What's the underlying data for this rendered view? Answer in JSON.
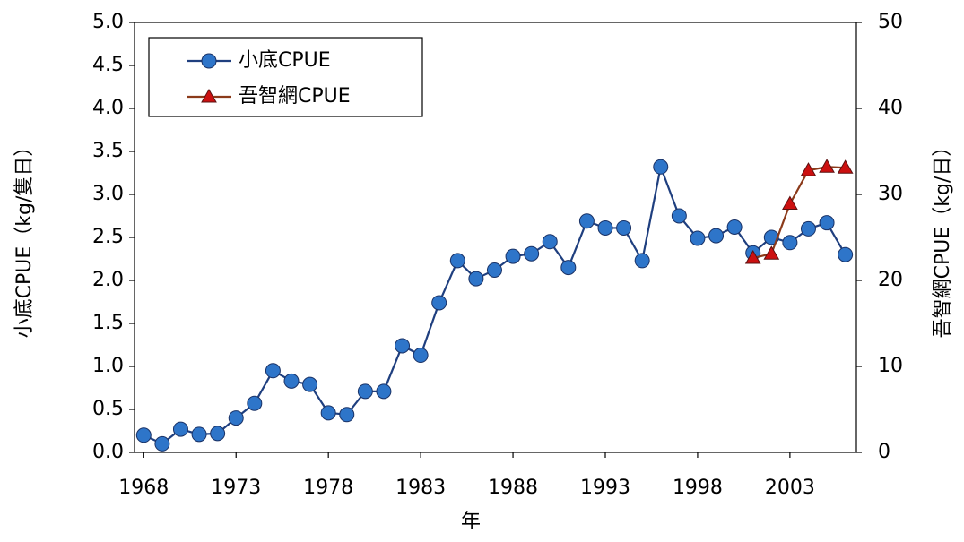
{
  "chart_data": {
    "type": "line",
    "x": [
      1968,
      1969,
      1970,
      1971,
      1972,
      1973,
      1974,
      1975,
      1976,
      1977,
      1978,
      1979,
      1980,
      1981,
      1982,
      1983,
      1984,
      1985,
      1986,
      1987,
      1988,
      1989,
      1990,
      1991,
      1992,
      1993,
      1994,
      1995,
      1996,
      1997,
      1998,
      1999,
      2000,
      2001,
      2002,
      2003,
      2004,
      2005,
      2006
    ],
    "series": [
      {
        "name": "小底CPUE",
        "color": "#1f3f7f",
        "marker_color": "#2e75c9",
        "marker": "circle",
        "values": [
          0.2,
          0.1,
          0.27,
          0.21,
          0.22,
          0.4,
          0.57,
          0.95,
          0.83,
          0.79,
          0.46,
          0.44,
          0.71,
          0.71,
          1.24,
          1.13,
          1.74,
          2.23,
          2.02,
          2.12,
          2.28,
          2.31,
          2.45,
          2.15,
          2.69,
          2.61,
          2.61,
          2.23,
          3.32,
          2.75,
          2.49,
          2.52,
          2.62,
          2.32,
          2.5,
          2.44,
          2.6,
          2.67,
          2.3
        ]
      },
      {
        "name": "吾智網CPUE",
        "color": "#8b3a1a",
        "marker_color": "#cc1010",
        "marker": "triangle",
        "axis": "y2",
        "values": [
          null,
          null,
          null,
          null,
          null,
          null,
          null,
          null,
          null,
          null,
          null,
          null,
          null,
          null,
          null,
          null,
          null,
          null,
          null,
          null,
          null,
          null,
          null,
          null,
          null,
          null,
          null,
          null,
          null,
          null,
          null,
          null,
          null,
          22.6,
          23.1,
          28.9,
          32.8,
          33.2,
          33.1
        ]
      }
    ],
    "x_label": "年",
    "y_label": "小底CPUE（kg/隻日）",
    "y2_label": "吾智網CPUE（kg/日）",
    "xlim": [
      1967.5,
      2006.6
    ],
    "xticks": [
      1968,
      1973,
      1978,
      1983,
      1988,
      1993,
      1998,
      2003
    ],
    "ylim": [
      0,
      5
    ],
    "yticks": [
      {
        "value": 0,
        "label": "0.0"
      },
      0.5,
      {
        "value": 1,
        "label": "1.0"
      },
      1.5,
      {
        "value": 2,
        "label": "2.0"
      },
      2.5,
      {
        "value": 3,
        "label": "3.0"
      },
      3.5,
      {
        "value": 4,
        "label": "4.0"
      },
      4.5,
      {
        "value": 5,
        "label": "5.0"
      }
    ],
    "y2lim": [
      0,
      50
    ],
    "y2ticks": [
      0,
      10,
      20,
      30,
      40,
      50
    ],
    "legend": "top-left"
  }
}
